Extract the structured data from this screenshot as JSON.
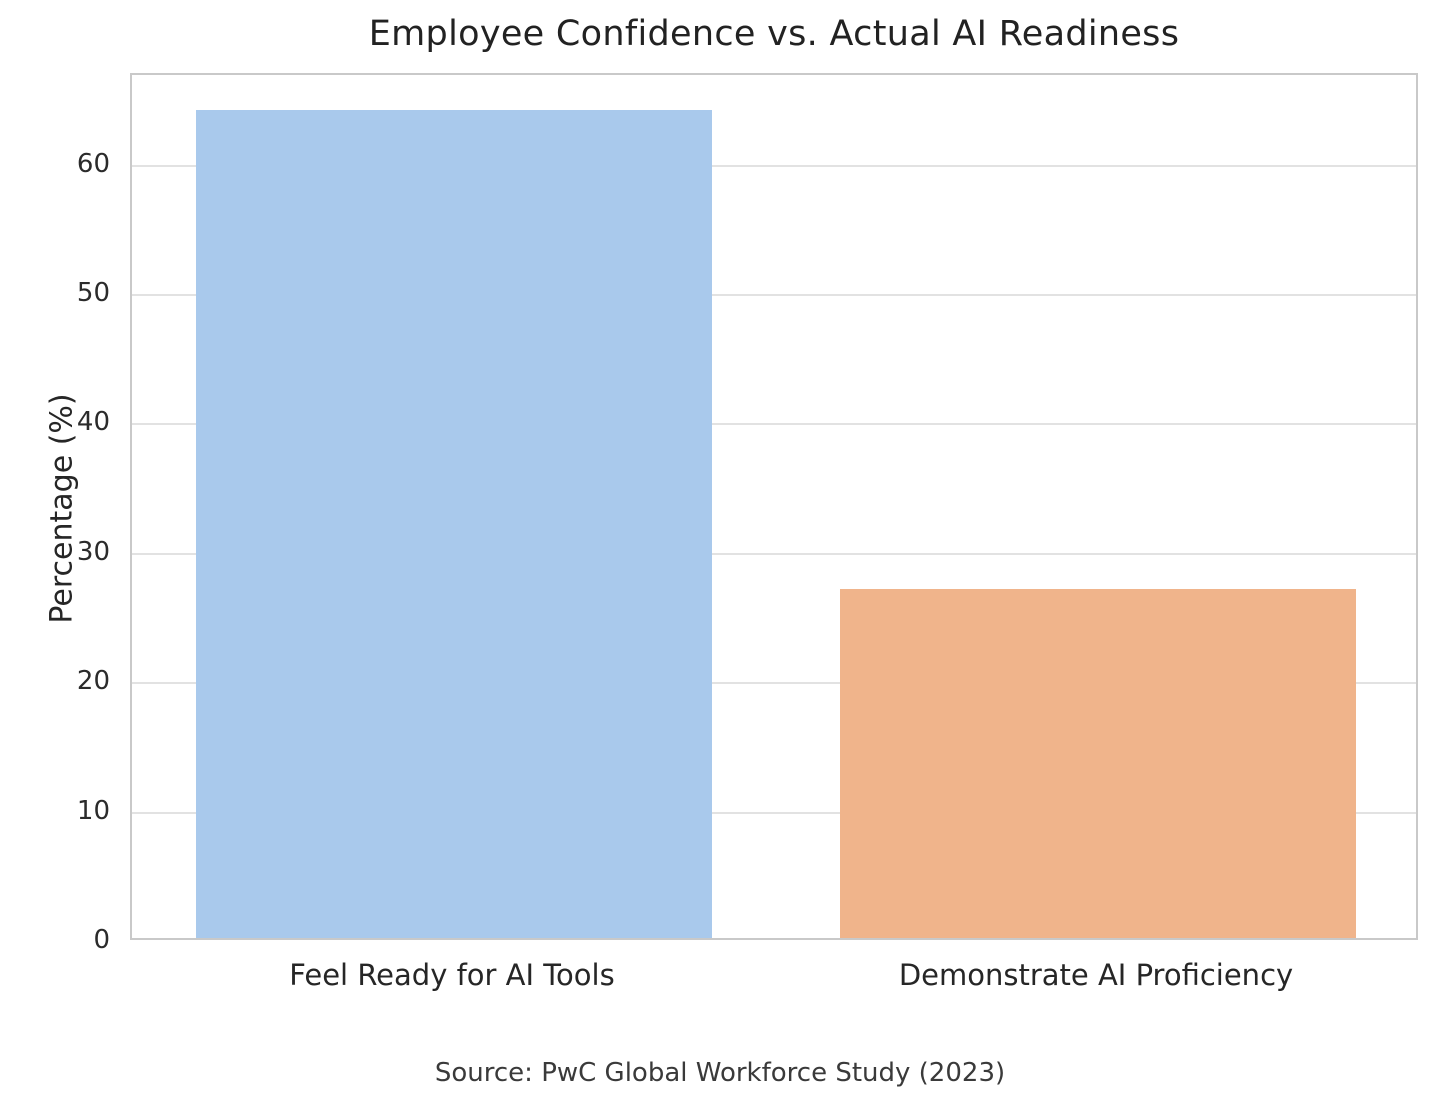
{
  "figure": {
    "kind": "static-chart-image"
  },
  "chart_data": {
    "type": "bar",
    "title": "Employee Confidence vs. Actual AI Readiness",
    "categories": [
      "Feel Ready for AI Tools",
      "Demonstrate AI Proficiency"
    ],
    "values": [
      64,
      27
    ],
    "xlabel": "",
    "ylabel": "Percentage (%)",
    "ylim": [
      0,
      67
    ],
    "yticks": [
      0,
      10,
      20,
      30,
      40,
      50,
      60
    ],
    "bar_colors": [
      "#a9c9ec",
      "#f0b48b"
    ],
    "bar_width_fraction": 0.8,
    "grid": "horizontal",
    "grid_color": "#e2e2e2",
    "spine_color": "#c9c9c9",
    "legend": "none",
    "annotation": "Source: PwC Global Workforce Study (2023)"
  }
}
